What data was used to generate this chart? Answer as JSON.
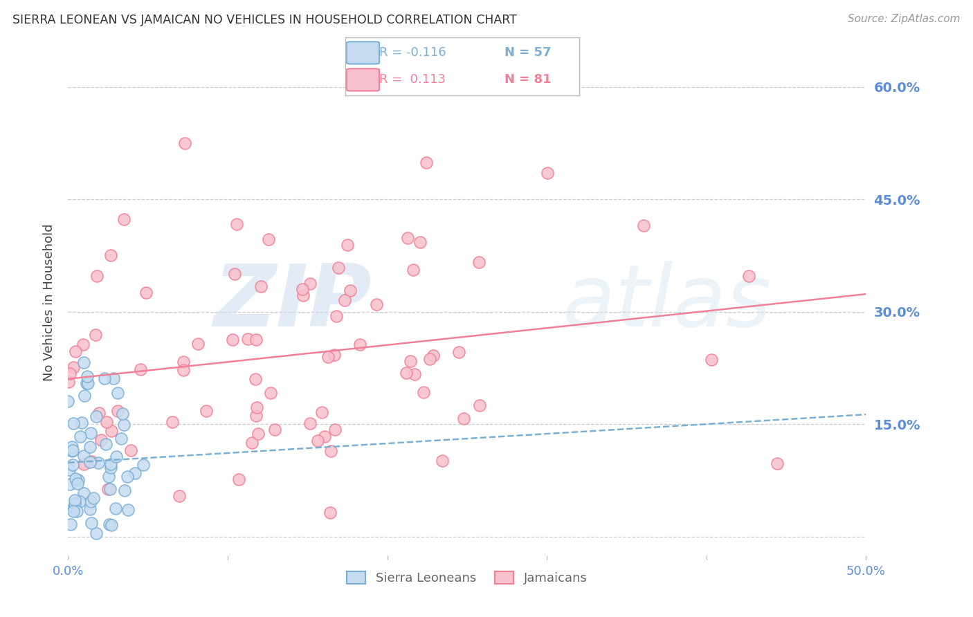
{
  "title": "SIERRA LEONEAN VS JAMAICAN NO VEHICLES IN HOUSEHOLD CORRELATION CHART",
  "source": "Source: ZipAtlas.com",
  "ylabel": "No Vehicles in Household",
  "xlim": [
    0.0,
    0.5
  ],
  "ylim": [
    -0.025,
    0.65
  ],
  "yticks": [
    0.0,
    0.15,
    0.3,
    0.45,
    0.6
  ],
  "ytick_labels_right": [
    "",
    "15.0%",
    "30.0%",
    "45.0%",
    "60.0%"
  ],
  "xticks": [
    0.0,
    0.1,
    0.2,
    0.3,
    0.4,
    0.5
  ],
  "xtick_labels": [
    "0.0%",
    "",
    "",
    "",
    "",
    "50.0%"
  ],
  "watermark_zip": "ZIP",
  "watermark_atlas": "atlas",
  "sierra_color": "#7bafd4",
  "sierra_face": "#c5dcf0",
  "jamaican_color": "#f08098",
  "jamaican_face": "#f8c0cc",
  "sierra_R": -0.116,
  "sierra_N": 57,
  "jamaican_R": 0.113,
  "jamaican_N": 81,
  "background_color": "#ffffff",
  "grid_color": "#cccccc",
  "title_color": "#333333",
  "tick_label_color": "#5b8dd9",
  "source_color": "#999999",
  "legend_r1": "R = -0.116",
  "legend_n1": "N = 57",
  "legend_r2": "R =  0.113",
  "legend_n2": "N = 81"
}
